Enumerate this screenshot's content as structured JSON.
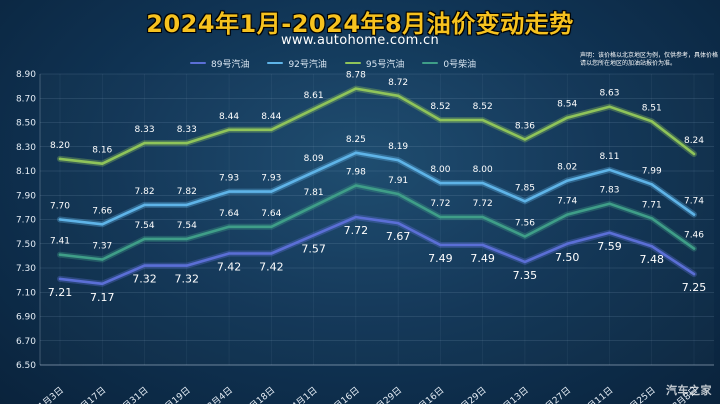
{
  "title": "2024年1月-2024年8月油价变动走势",
  "subtitle": "www.autohome.com.cn",
  "note": "声明：该价格以北京地区为例，仅供参考，具体价格请以您所在地区的加油站报价为准。",
  "watermark": "汽车之家",
  "chart_data": {
    "type": "line",
    "title": "2024年1月-2024年8月油价变动走势",
    "categories": [
      "1月3日",
      "1月17日",
      "1月31日",
      "2月19日",
      "3月4日",
      "3月18日",
      "4月1日",
      "4月16日",
      "4月29日",
      "5月16日",
      "5月29日",
      "6月13日",
      "6月27日",
      "7月11日",
      "7月25日",
      "8月8日"
    ],
    "ylim": [
      6.5,
      8.9
    ],
    "yticks": [
      "6.50",
      "6.70",
      "6.90",
      "7.10",
      "7.30",
      "7.50",
      "7.70",
      "7.90",
      "8.10",
      "8.30",
      "8.50",
      "8.70",
      "8.90"
    ],
    "grid": true,
    "legend_position": "top",
    "series": [
      {
        "name": "89号汽油",
        "color": "#5b6fd6",
        "label_color": "#ffffff",
        "label_size": 11,
        "values": [
          7.21,
          7.17,
          7.32,
          7.32,
          7.42,
          7.42,
          7.57,
          7.72,
          7.67,
          7.49,
          7.49,
          7.35,
          7.5,
          7.59,
          7.48,
          7.25
        ]
      },
      {
        "name": "92号汽油",
        "color": "#5fb4e8",
        "label_color": "#ffffff",
        "label_size": 9,
        "values": [
          7.7,
          7.66,
          7.82,
          7.82,
          7.93,
          7.93,
          8.09,
          8.25,
          8.19,
          8.0,
          8.0,
          7.85,
          8.02,
          8.11,
          7.99,
          7.74
        ]
      },
      {
        "name": "95号汽油",
        "color": "#8fc45a",
        "label_color": "#ffffff",
        "label_size": 9,
        "values": [
          8.2,
          8.16,
          8.33,
          8.33,
          8.44,
          8.44,
          8.61,
          8.78,
          8.72,
          8.52,
          8.52,
          8.36,
          8.54,
          8.63,
          8.51,
          8.24
        ]
      },
      {
        "name": "0号柴油",
        "color": "#3f9e88",
        "label_color": "#ffffff",
        "label_size": 9,
        "values": [
          7.41,
          7.37,
          7.54,
          7.54,
          7.64,
          7.64,
          7.81,
          7.98,
          7.91,
          7.72,
          7.72,
          7.56,
          7.74,
          7.83,
          7.71,
          7.46
        ]
      }
    ]
  }
}
